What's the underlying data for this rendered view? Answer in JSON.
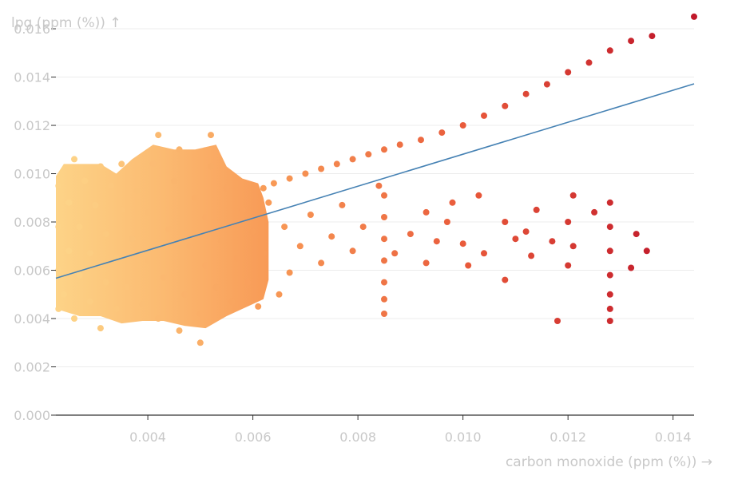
{
  "chart_data": {
    "type": "scatter",
    "xlabel": "carbon monoxide (ppm (%)) →",
    "ylabel": "lpg (ppm (%)) ↑",
    "xlim": [
      0.00225,
      0.0144
    ],
    "ylim": [
      0,
      0.0162
    ],
    "x_ticks": [
      "0.004",
      "0.006",
      "0.008",
      "0.010",
      "0.012",
      "0.014"
    ],
    "x_tick_values": [
      0.004,
      0.006,
      0.008,
      0.01,
      0.012,
      0.014
    ],
    "y_ticks": [
      "0.000",
      "0.002",
      "0.004",
      "0.006",
      "0.008",
      "0.010",
      "0.012",
      "0.014",
      "0.016"
    ],
    "y_tick_values": [
      0,
      0.002,
      0.004,
      0.006,
      0.008,
      0.01,
      0.012,
      0.014,
      0.016
    ],
    "grid": true,
    "color_scale": [
      "#fdd387",
      "#f89a56",
      "#e8583a",
      "#c0182a"
    ],
    "trend_color": "#4682b4",
    "trend_line": {
      "x": [
        0.00225,
        0.0144
      ],
      "y": [
        0.00567,
        0.01372
      ]
    },
    "series": [
      {
        "points": [
          [
            0.0144,
            0.0165
          ],
          [
            0.0136,
            0.0157
          ],
          [
            0.0132,
            0.0155
          ],
          [
            0.0128,
            0.0151
          ],
          [
            0.0124,
            0.0146
          ],
          [
            0.012,
            0.0142
          ],
          [
            0.0116,
            0.0137
          ],
          [
            0.0112,
            0.0133
          ],
          [
            0.0108,
            0.0128
          ],
          [
            0.0104,
            0.0124
          ],
          [
            0.01,
            0.012
          ],
          [
            0.0096,
            0.0117
          ],
          [
            0.0092,
            0.0114
          ],
          [
            0.0088,
            0.0112
          ],
          [
            0.0085,
            0.011
          ],
          [
            0.0082,
            0.0108
          ],
          [
            0.0079,
            0.0106
          ],
          [
            0.0076,
            0.0104
          ],
          [
            0.0073,
            0.0102
          ],
          [
            0.007,
            0.01
          ],
          [
            0.0067,
            0.0098
          ],
          [
            0.0064,
            0.0096
          ],
          [
            0.0062,
            0.0094
          ],
          [
            0.0103,
            0.0091
          ],
          [
            0.0098,
            0.0088
          ],
          [
            0.0093,
            0.0084
          ],
          [
            0.0108,
            0.008
          ],
          [
            0.0112,
            0.0076
          ],
          [
            0.0117,
            0.0072
          ],
          [
            0.0121,
            0.007
          ],
          [
            0.0125,
            0.0084
          ],
          [
            0.0128,
            0.0088
          ],
          [
            0.0128,
            0.0078
          ],
          [
            0.0128,
            0.0068
          ],
          [
            0.0128,
            0.0058
          ],
          [
            0.0128,
            0.005
          ],
          [
            0.0128,
            0.0044
          ],
          [
            0.0128,
            0.0039
          ],
          [
            0.0133,
            0.0075
          ],
          [
            0.0132,
            0.0061
          ],
          [
            0.0135,
            0.0068
          ],
          [
            0.0121,
            0.0091
          ],
          [
            0.012,
            0.008
          ],
          [
            0.012,
            0.0062
          ],
          [
            0.0114,
            0.0085
          ],
          [
            0.0113,
            0.0066
          ],
          [
            0.0118,
            0.0039
          ],
          [
            0.011,
            0.0073
          ],
          [
            0.0108,
            0.0056
          ],
          [
            0.0104,
            0.0067
          ],
          [
            0.0101,
            0.0062
          ],
          [
            0.01,
            0.0071
          ],
          [
            0.0097,
            0.008
          ],
          [
            0.0095,
            0.0072
          ],
          [
            0.0093,
            0.0063
          ],
          [
            0.009,
            0.0075
          ],
          [
            0.0087,
            0.0067
          ],
          [
            0.0085,
            0.0091
          ],
          [
            0.0085,
            0.0082
          ],
          [
            0.0085,
            0.0073
          ],
          [
            0.0085,
            0.0064
          ],
          [
            0.0085,
            0.0055
          ],
          [
            0.0085,
            0.0048
          ],
          [
            0.0085,
            0.0042
          ],
          [
            0.0084,
            0.0095
          ],
          [
            0.0081,
            0.0078
          ],
          [
            0.0079,
            0.0068
          ],
          [
            0.0077,
            0.0087
          ],
          [
            0.0075,
            0.0074
          ],
          [
            0.0073,
            0.0063
          ],
          [
            0.0071,
            0.0083
          ],
          [
            0.0069,
            0.007
          ],
          [
            0.0067,
            0.0059
          ],
          [
            0.0066,
            0.0078
          ],
          [
            0.0065,
            0.005
          ],
          [
            0.0063,
            0.0088
          ],
          [
            0.0062,
            0.0067
          ],
          [
            0.0061,
            0.0045
          ],
          [
            0.006,
            0.0076
          ],
          [
            0.0059,
            0.0055
          ],
          [
            0.0058,
            0.0085
          ],
          [
            0.0057,
            0.0065
          ],
          [
            0.0056,
            0.0047
          ],
          [
            0.0055,
            0.0094
          ],
          [
            0.0054,
            0.0072
          ],
          [
            0.0053,
            0.0053
          ],
          [
            0.0052,
            0.0116
          ],
          [
            0.0052,
            0.0103
          ],
          [
            0.0051,
            0.0082
          ],
          [
            0.0051,
            0.0062
          ],
          [
            0.005,
            0.0042
          ],
          [
            0.005,
            0.003
          ],
          [
            0.0049,
            0.009
          ],
          [
            0.0048,
            0.007
          ],
          [
            0.0047,
            0.005
          ],
          [
            0.0046,
            0.011
          ],
          [
            0.0046,
            0.0035
          ],
          [
            0.0045,
            0.0097
          ],
          [
            0.0044,
            0.0077
          ],
          [
            0.0043,
            0.0057
          ],
          [
            0.0042,
            0.0116
          ],
          [
            0.0042,
            0.004
          ],
          [
            0.0041,
            0.0104
          ],
          [
            0.004,
            0.0084
          ],
          [
            0.004,
            0.0064
          ],
          [
            0.0039,
            0.0046
          ],
          [
            0.0038,
            0.0093
          ],
          [
            0.0037,
            0.0073
          ],
          [
            0.0036,
            0.0053
          ],
          [
            0.0035,
            0.0104
          ],
          [
            0.0035,
            0.0085
          ],
          [
            0.0034,
            0.0065
          ],
          [
            0.0034,
            0.0044
          ],
          [
            0.0033,
            0.0095
          ],
          [
            0.0032,
            0.0075
          ],
          [
            0.0032,
            0.0055
          ],
          [
            0.0031,
            0.0103
          ],
          [
            0.0031,
            0.0036
          ],
          [
            0.003,
            0.0087
          ],
          [
            0.0029,
            0.0067
          ],
          [
            0.0029,
            0.0047
          ],
          [
            0.0028,
            0.0097
          ],
          [
            0.0027,
            0.0078
          ],
          [
            0.0027,
            0.0058
          ],
          [
            0.0026,
            0.0106
          ],
          [
            0.0026,
            0.004
          ],
          [
            0.0025,
            0.0088
          ],
          [
            0.0025,
            0.0068
          ],
          [
            0.0024,
            0.005
          ],
          [
            0.0023,
            0.0095
          ],
          [
            0.0023,
            0.0078
          ],
          [
            0.0023,
            0.006
          ],
          [
            0.0023,
            0.0044
          ]
        ]
      }
    ]
  }
}
